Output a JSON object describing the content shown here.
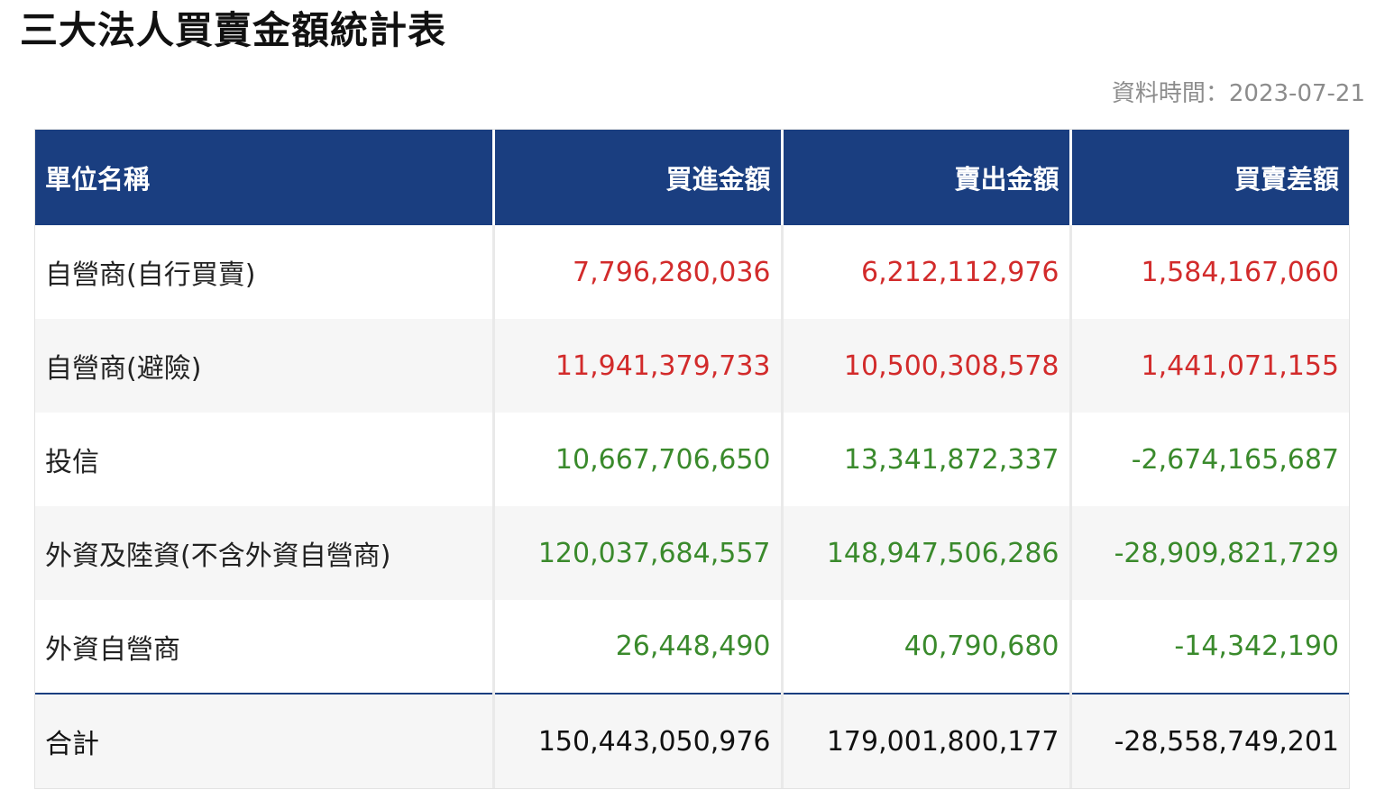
{
  "title": "三大法人買賣金額統計表",
  "data_time": "資料時間：2023-07-21",
  "colors": {
    "header_bg": "#1a3e80",
    "positive": "#d22b2b",
    "negative": "#3a8a2c"
  },
  "table": {
    "headers": [
      "單位名稱",
      "買進金額",
      "賣出金額",
      "買賣差額"
    ],
    "rows": [
      {
        "name": "自營商(自行買賣)",
        "buy": "7,796,280,036",
        "sell": "6,212,112,976",
        "diff": "1,584,167,060",
        "trend": "pos"
      },
      {
        "name": "自營商(避險)",
        "buy": "11,941,379,733",
        "sell": "10,500,308,578",
        "diff": "1,441,071,155",
        "trend": "pos"
      },
      {
        "name": "投信",
        "buy": "10,667,706,650",
        "sell": "13,341,872,337",
        "diff": "-2,674,165,687",
        "trend": "neg"
      },
      {
        "name": "外資及陸資(不含外資自營商)",
        "buy": "120,037,684,557",
        "sell": "148,947,506,286",
        "diff": "-28,909,821,729",
        "trend": "neg"
      },
      {
        "name": "外資自營商",
        "buy": "26,448,490",
        "sell": "40,790,680",
        "diff": "-14,342,190",
        "trend": "neg"
      }
    ],
    "total": {
      "name": "合計",
      "buy": "150,443,050,976",
      "sell": "179,001,800,177",
      "diff": "-28,558,749,201"
    }
  }
}
